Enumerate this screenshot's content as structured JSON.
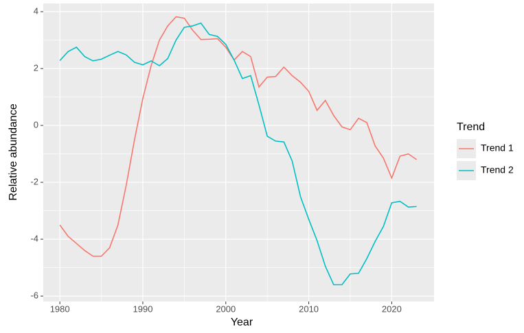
{
  "chart_data": {
    "type": "line",
    "x_label": "Year",
    "y_label": "Relative abundance",
    "legend_title": "Trend",
    "legend": "right",
    "x": [
      1980,
      1981,
      1982,
      1983,
      1984,
      1985,
      1986,
      1987,
      1988,
      1989,
      1990,
      1991,
      1992,
      1993,
      1994,
      1995,
      1996,
      1997,
      1998,
      1999,
      2000,
      2001,
      2002,
      2003,
      2004,
      2005,
      2006,
      2007,
      2008,
      2009,
      2010,
      2011,
      2012,
      2013,
      2014,
      2015,
      2016,
      2017,
      2018,
      2019,
      2020,
      2021,
      2022,
      2023
    ],
    "series": [
      {
        "name": "Trend 1",
        "color": "#F8766D",
        "values": [
          -3.5,
          -3.9,
          -4.15,
          -4.4,
          -4.6,
          -4.6,
          -4.3,
          -3.5,
          -2.1,
          -0.5,
          0.95,
          2.1,
          3.0,
          3.5,
          3.82,
          3.77,
          3.35,
          3.02,
          3.03,
          3.05,
          2.75,
          2.3,
          2.6,
          2.42,
          1.35,
          1.7,
          1.72,
          2.05,
          1.75,
          1.52,
          1.2,
          0.53,
          0.88,
          0.35,
          -0.05,
          -0.15,
          0.25,
          0.1,
          -0.72,
          -1.15,
          -1.85,
          -1.08,
          -1.0,
          -1.2
        ]
      },
      {
        "name": "Trend 2",
        "color": "#00BFC4",
        "values": [
          2.28,
          2.6,
          2.75,
          2.42,
          2.27,
          2.33,
          2.47,
          2.6,
          2.48,
          2.22,
          2.13,
          2.27,
          2.1,
          2.35,
          3.0,
          3.45,
          3.5,
          3.6,
          3.2,
          3.13,
          2.85,
          2.3,
          1.65,
          1.75,
          0.72,
          -0.38,
          -0.55,
          -0.58,
          -1.25,
          -2.5,
          -3.3,
          -4.05,
          -4.95,
          -5.6,
          -5.6,
          -5.22,
          -5.2,
          -4.68,
          -4.08,
          -3.55,
          -2.72,
          -2.67,
          -2.87,
          -2.85
        ]
      }
    ],
    "xlim": [
      1978,
      2025.1
    ],
    "xticks": [
      1980,
      1990,
      2000,
      2010,
      2020
    ],
    "ylim": [
      -6.19,
      4.29
    ],
    "yticks": [
      -6,
      -4,
      -2,
      0,
      2,
      4
    ],
    "grid": true
  }
}
